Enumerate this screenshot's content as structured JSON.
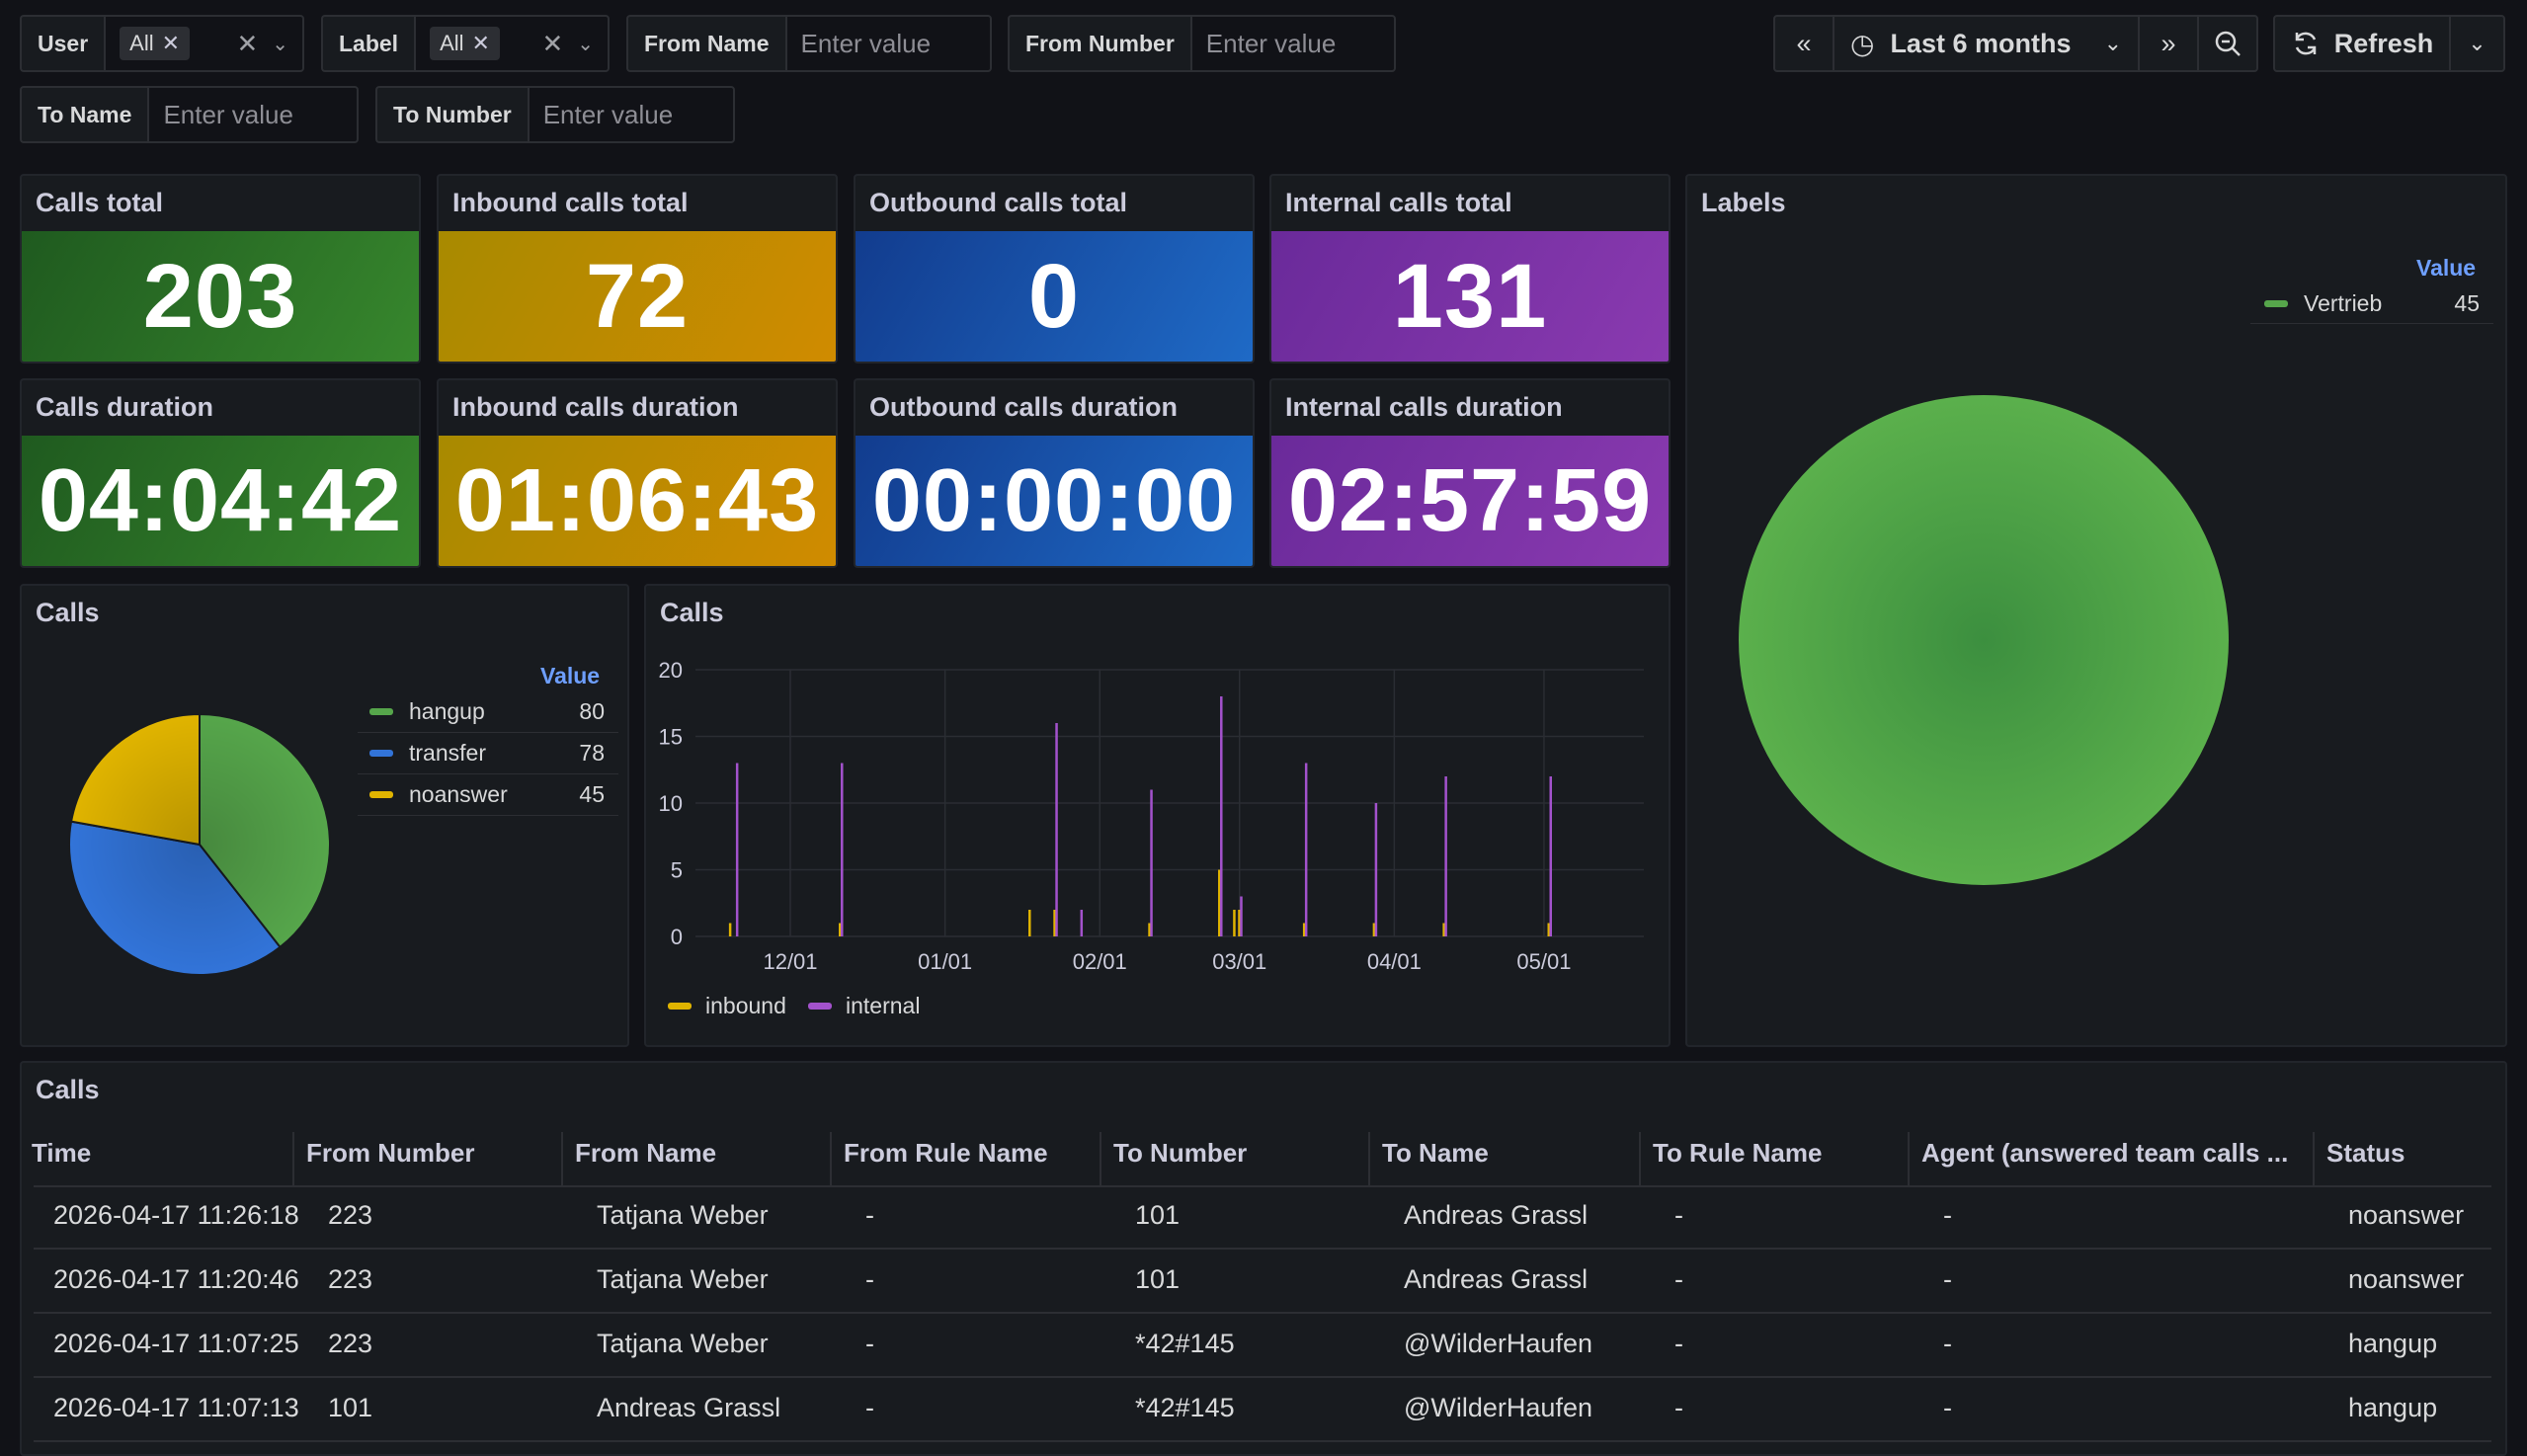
{
  "variables": {
    "user": {
      "label": "User",
      "value": "All"
    },
    "label": {
      "label": "Label",
      "value": "All"
    },
    "from_name": {
      "label": "From Name",
      "placeholder": "Enter value"
    },
    "from_number": {
      "label": "From Number",
      "placeholder": "Enter value"
    },
    "to_name": {
      "label": "To Name",
      "placeholder": "Enter value"
    },
    "to_number": {
      "label": "To Number",
      "placeholder": "Enter value"
    }
  },
  "time_controls": {
    "range": "Last 6 months",
    "refresh": "Refresh",
    "icons": [
      "chevron-left-double-icon",
      "clock-icon",
      "chevron-down-icon",
      "chevron-right-double-icon",
      "zoom-out-icon",
      "refresh-icon",
      "chevron-down-icon"
    ]
  },
  "stats": {
    "calls_total": {
      "title": "Calls total",
      "value": "203",
      "color": "#37872d"
    },
    "inbound_total": {
      "title": "Inbound calls total",
      "value": "72",
      "color": "#d0a000"
    },
    "outbound_total": {
      "title": "Outbound calls total",
      "value": "0",
      "color": "#1f60c4"
    },
    "internal_total": {
      "title": "Internal calls total",
      "value": "131",
      "color": "#8f3bb8"
    },
    "calls_duration": {
      "title": "Calls duration",
      "value": "04:04:42"
    },
    "inbound_duration": {
      "title": "Inbound calls duration",
      "value": "01:06:43"
    },
    "outbound_duration": {
      "title": "Outbound calls duration",
      "value": "00:00:00"
    },
    "internal_duration": {
      "title": "Internal calls duration",
      "value": "02:57:59"
    }
  },
  "labels_panel": {
    "title": "Labels",
    "legend_header": "Value",
    "items": [
      {
        "name": "Vertrieb",
        "value": "45",
        "color": "#56a64b"
      }
    ]
  },
  "calls_pie": {
    "title": "Calls",
    "legend_header": "Value",
    "items": [
      {
        "name": "hangup",
        "value": "80",
        "color": "#56a64b"
      },
      {
        "name": "transfer",
        "value": "78",
        "color": "#3274d9"
      },
      {
        "name": "noanswer",
        "value": "45",
        "color": "#e0b400"
      }
    ]
  },
  "calls_timeseries": {
    "title": "Calls",
    "legend": [
      {
        "name": "inbound",
        "color": "#e0b400"
      },
      {
        "name": "internal",
        "color": "#a352cc"
      }
    ]
  },
  "chart_data": [
    {
      "type": "pie",
      "title": "Calls",
      "categories": [
        "hangup",
        "transfer",
        "noanswer"
      ],
      "values": [
        80,
        78,
        45
      ],
      "colors": [
        "#56a64b",
        "#3274d9",
        "#e0b400"
      ]
    },
    {
      "type": "bar",
      "title": "Calls",
      "xlabel": "",
      "ylabel": "",
      "ylim": [
        0,
        20
      ],
      "yticks": [
        "0",
        "5",
        "10",
        "15",
        "20"
      ],
      "x_ticks": [
        "12/01",
        "01/01",
        "02/01",
        "03/01",
        "04/01",
        "05/01"
      ],
      "x": [
        "2025-11-19",
        "2025-11-20",
        "2025-12-11",
        "2026-01-18",
        "2026-01-23",
        "2026-01-28",
        "2026-02-11",
        "2026-02-25",
        "2026-02-28",
        "2026-02-29",
        "2026-03-14",
        "2026-03-28",
        "2026-04-11",
        "2026-05-02"
      ],
      "series": [
        {
          "name": "inbound",
          "color": "#e0b400",
          "values": [
            1,
            0,
            1,
            2,
            2,
            0,
            1,
            5,
            2,
            2,
            1,
            1,
            1,
            1
          ]
        },
        {
          "name": "internal",
          "color": "#a352cc",
          "values": [
            0,
            13,
            13,
            0,
            16,
            2,
            11,
            18,
            0,
            3,
            13,
            10,
            12,
            12
          ]
        }
      ],
      "legend_position": "bottom-left"
    },
    {
      "type": "pie",
      "title": "Labels",
      "categories": [
        "Vertrieb"
      ],
      "values": [
        45
      ],
      "colors": [
        "#56a64b"
      ]
    }
  ],
  "table": {
    "title": "Calls",
    "columns": [
      "Time",
      "From Number",
      "From Name",
      "From Rule Name",
      "To Number",
      "To Name",
      "To Rule Name",
      "Agent (answered team calls ...",
      "Status"
    ],
    "rows": [
      [
        "2026-04-17 11:26:18",
        "223",
        "Tatjana Weber",
        "-",
        "101",
        "Andreas Grassl",
        "-",
        "-",
        "noanswer"
      ],
      [
        "2026-04-17 11:20:46",
        "223",
        "Tatjana Weber",
        "-",
        "101",
        "Andreas Grassl",
        "-",
        "-",
        "noanswer"
      ],
      [
        "2026-04-17 11:07:25",
        "223",
        "Tatjana Weber",
        "-",
        "*42#145",
        "@WilderHaufen",
        "-",
        "-",
        "hangup"
      ],
      [
        "2026-04-17 11:07:13",
        "101",
        "Andreas Grassl",
        "-",
        "*42#145",
        "@WilderHaufen",
        "-",
        "-",
        "hangup"
      ]
    ]
  }
}
